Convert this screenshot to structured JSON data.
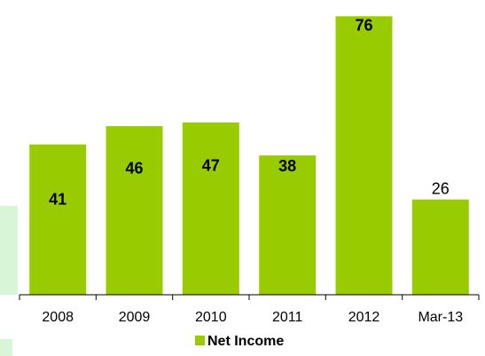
{
  "chart_data": {
    "type": "bar",
    "categories": [
      "2008",
      "2009",
      "2010",
      "2011",
      "2012",
      "Mar-13"
    ],
    "series": [
      {
        "name": "Net Income",
        "values": [
          41,
          46,
          47,
          38,
          76,
          26
        ],
        "color": "#99cc00"
      }
    ],
    "data_labels": [
      "41",
      "46",
      "47",
      "38",
      "76",
      "26"
    ],
    "data_label_bold": [
      true,
      true,
      true,
      true,
      true,
      false
    ],
    "ylim": [
      0,
      78
    ],
    "grid": false,
    "legend": {
      "placement": "bottom-center",
      "entries": [
        "Net Income"
      ]
    }
  }
}
